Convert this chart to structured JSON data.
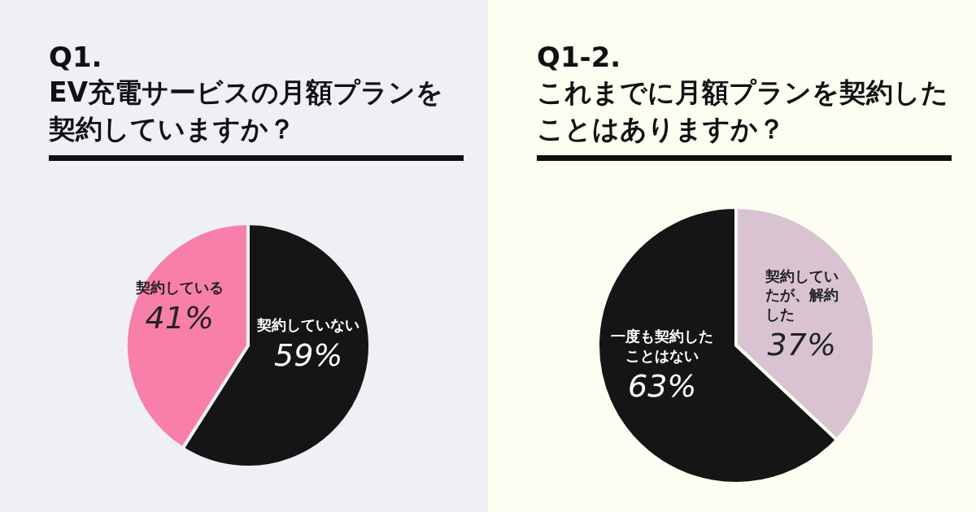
{
  "chart_data": [
    {
      "type": "pie",
      "title": "Q1.",
      "subtitle": "EV充電サービスの月額プランを契約していますか？",
      "categories": [
        "契約していない",
        "契約している"
      ],
      "values": [
        59,
        41
      ],
      "colors": [
        "#151515",
        "#f77fa9"
      ],
      "value_labels": [
        "59%",
        "41%"
      ]
    },
    {
      "type": "pie",
      "title": "Q1-2.",
      "subtitle": "これまでに月額プランを契約したことはありますか？",
      "categories": [
        "契約していたが、解約した",
        "一度も契約したことはない"
      ],
      "values": [
        37,
        63
      ],
      "colors": [
        "#d9c3d1",
        "#151515"
      ],
      "value_labels": [
        "37%",
        "63%"
      ]
    }
  ]
}
